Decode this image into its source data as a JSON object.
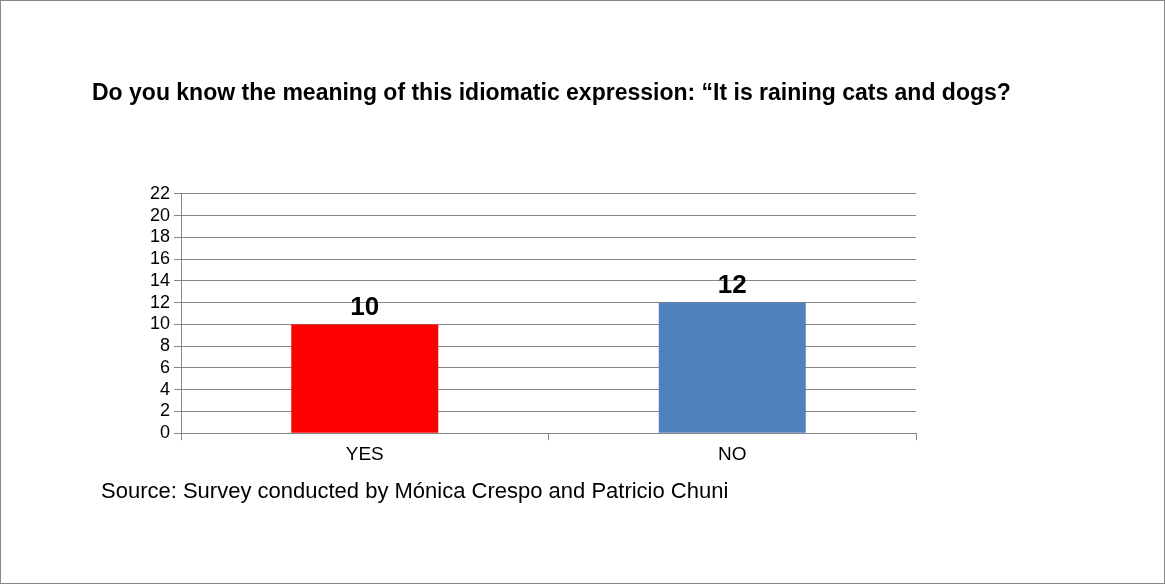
{
  "chart_data": {
    "type": "bar",
    "title": "Do you know the meaning of this idiomatic expression: “It is raining cats and dogs?",
    "categories": [
      "YES",
      "NO"
    ],
    "values": [
      10,
      12
    ],
    "colors": [
      "#ff0000",
      "#4f81bd"
    ],
    "ylim": [
      0,
      22
    ],
    "yticks": [
      0,
      2,
      4,
      6,
      8,
      10,
      12,
      14,
      16,
      18,
      20,
      22
    ],
    "grid": "y",
    "legend": false,
    "data_labels": true,
    "annotations": [
      "Source:  Survey conducted by Mónica Crespo and Patricio Chuni"
    ]
  }
}
